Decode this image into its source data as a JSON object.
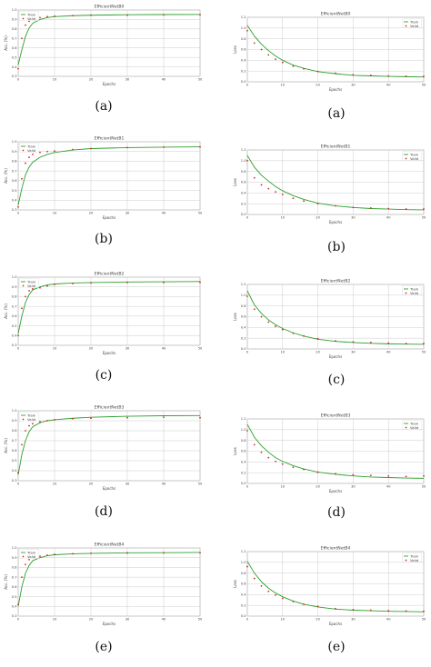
{
  "captions": [
    "(a)",
    "(b)",
    "(c)",
    "(d)",
    "(e)",
    "(a)",
    "(b)",
    "(c)",
    "(d)",
    "(e)"
  ],
  "colors": {
    "train": "#2ca02c",
    "valid": "#d62728",
    "grid": "#cccccc",
    "frame": "#999999"
  },
  "chart_data": [
    {
      "id": "acc-a",
      "type": "line",
      "title": "EfficientNetB0",
      "xlabel": "Epochs",
      "ylabel": "Acc. (%)",
      "grid": true,
      "legend": "top-left",
      "xlim": [
        0,
        50
      ],
      "ylim": [
        0.3,
        1.0
      ],
      "x": [
        0,
        1,
        2,
        3,
        4,
        6,
        8,
        10,
        15,
        20,
        30,
        40,
        50
      ],
      "series": [
        {
          "name": "Train",
          "style": "line",
          "values": [
            0.42,
            0.58,
            0.72,
            0.81,
            0.86,
            0.9,
            0.92,
            0.93,
            0.94,
            0.945,
            0.95,
            0.952,
            0.953
          ]
        },
        {
          "name": "Valid",
          "style": "dots",
          "values": [
            0.38,
            0.7,
            0.84,
            0.88,
            0.9,
            0.92,
            0.93,
            0.935,
            0.94,
            0.945,
            0.945,
            0.948,
            0.95
          ]
        }
      ]
    },
    {
      "id": "acc-b",
      "type": "line",
      "title": "EfficientNetB1",
      "xlabel": "Epochs",
      "ylabel": "Acc. (%)",
      "grid": true,
      "legend": "top-left",
      "xlim": [
        0,
        50
      ],
      "ylim": [
        0.3,
        1.0
      ],
      "x": [
        0,
        1,
        2,
        3,
        4,
        6,
        8,
        10,
        15,
        20,
        30,
        40,
        50
      ],
      "series": [
        {
          "name": "Train",
          "style": "line",
          "values": [
            0.35,
            0.52,
            0.66,
            0.74,
            0.79,
            0.84,
            0.87,
            0.89,
            0.915,
            0.93,
            0.94,
            0.945,
            0.948
          ]
        },
        {
          "name": "Valid",
          "style": "dots",
          "values": [
            0.33,
            0.62,
            0.78,
            0.84,
            0.87,
            0.89,
            0.9,
            0.905,
            0.92,
            0.93,
            0.94,
            0.945,
            0.947
          ]
        }
      ]
    },
    {
      "id": "acc-c",
      "type": "line",
      "title": "EfficientNetB2",
      "xlabel": "Epochs",
      "ylabel": "Acc. (%)",
      "grid": true,
      "legend": "top-left",
      "xlim": [
        0,
        50
      ],
      "ylim": [
        0.3,
        1.0
      ],
      "x": [
        0,
        1,
        2,
        3,
        4,
        6,
        8,
        10,
        15,
        20,
        30,
        40,
        50
      ],
      "series": [
        {
          "name": "Train",
          "style": "line",
          "values": [
            0.42,
            0.6,
            0.74,
            0.82,
            0.87,
            0.9,
            0.92,
            0.93,
            0.94,
            0.945,
            0.95,
            0.953,
            0.955
          ]
        },
        {
          "name": "Valid",
          "style": "dots",
          "values": [
            0.4,
            0.68,
            0.8,
            0.86,
            0.88,
            0.89,
            0.91,
            0.925,
            0.935,
            0.94,
            0.945,
            0.945,
            0.948
          ]
        }
      ]
    },
    {
      "id": "acc-d",
      "type": "line",
      "title": "EfficientNetB3",
      "xlabel": "Epochs",
      "ylabel": "Acc. (%)",
      "grid": true,
      "legend": "top-left",
      "xlim": [
        0,
        50
      ],
      "ylim": [
        0.3,
        1.0
      ],
      "x": [
        0,
        1,
        2,
        3,
        4,
        6,
        8,
        10,
        15,
        20,
        30,
        40,
        50
      ],
      "series": [
        {
          "name": "Train",
          "style": "line",
          "values": [
            0.36,
            0.56,
            0.7,
            0.79,
            0.84,
            0.88,
            0.9,
            0.91,
            0.925,
            0.935,
            0.945,
            0.95,
            0.952
          ]
        },
        {
          "name": "Valid",
          "style": "dots",
          "values": [
            0.38,
            0.66,
            0.8,
            0.85,
            0.87,
            0.89,
            0.9,
            0.91,
            0.92,
            0.925,
            0.93,
            0.935,
            0.93
          ]
        }
      ]
    },
    {
      "id": "acc-e",
      "type": "line",
      "title": "EfficientNetB4",
      "xlabel": "Epochs",
      "ylabel": "Acc. (%)",
      "grid": true,
      "legend": "top-left",
      "xlim": [
        0,
        50
      ],
      "ylim": [
        0.3,
        1.0
      ],
      "x": [
        0,
        1,
        2,
        3,
        4,
        6,
        8,
        10,
        15,
        20,
        30,
        40,
        50
      ],
      "series": [
        {
          "name": "Train",
          "style": "line",
          "values": [
            0.4,
            0.6,
            0.74,
            0.82,
            0.87,
            0.9,
            0.92,
            0.93,
            0.94,
            0.945,
            0.95,
            0.952,
            0.954
          ]
        },
        {
          "name": "Valid",
          "style": "dots",
          "values": [
            0.42,
            0.7,
            0.83,
            0.88,
            0.9,
            0.915,
            0.925,
            0.935,
            0.94,
            0.945,
            0.948,
            0.95,
            0.951
          ]
        }
      ]
    },
    {
      "id": "loss-a",
      "type": "line",
      "title": "EfficientNetB0",
      "xlabel": "Epochs",
      "ylabel": "Loss",
      "grid": true,
      "legend": "top-right",
      "xlim": [
        0,
        50
      ],
      "ylim": [
        0,
        1.2
      ],
      "x": [
        0,
        2,
        4,
        6,
        8,
        10,
        13,
        16,
        20,
        25,
        30,
        35,
        40,
        45,
        50
      ],
      "series": [
        {
          "name": "Train",
          "style": "line",
          "values": [
            1.05,
            0.85,
            0.7,
            0.58,
            0.48,
            0.4,
            0.31,
            0.25,
            0.19,
            0.15,
            0.12,
            0.11,
            0.1,
            0.095,
            0.09
          ]
        },
        {
          "name": "Valid",
          "style": "dots",
          "values": [
            0.95,
            0.72,
            0.6,
            0.5,
            0.42,
            0.36,
            0.29,
            0.24,
            0.19,
            0.16,
            0.13,
            0.12,
            0.11,
            0.1,
            0.1
          ]
        }
      ]
    },
    {
      "id": "loss-b",
      "type": "line",
      "title": "EfficientNetB1",
      "xlabel": "Epochs",
      "ylabel": "Loss",
      "grid": true,
      "legend": "top-right",
      "xlim": [
        0,
        50
      ],
      "ylim": [
        0,
        1.2
      ],
      "x": [
        0,
        2,
        4,
        6,
        8,
        10,
        13,
        16,
        20,
        25,
        30,
        35,
        40,
        45,
        50
      ],
      "series": [
        {
          "name": "Train",
          "style": "line",
          "values": [
            1.1,
            0.88,
            0.73,
            0.62,
            0.52,
            0.44,
            0.35,
            0.28,
            0.21,
            0.16,
            0.13,
            0.11,
            0.1,
            0.09,
            0.085
          ]
        },
        {
          "name": "Valid",
          "style": "dots",
          "values": [
            1.0,
            0.68,
            0.55,
            0.48,
            0.42,
            0.37,
            0.3,
            0.25,
            0.2,
            0.16,
            0.13,
            0.12,
            0.11,
            0.1,
            0.1
          ]
        }
      ]
    },
    {
      "id": "loss-c",
      "type": "line",
      "title": "EfficientNetB2",
      "xlabel": "Epochs",
      "ylabel": "Loss",
      "grid": true,
      "legend": "top-right",
      "xlim": [
        0,
        50
      ],
      "ylim": [
        0,
        1.2
      ],
      "x": [
        0,
        2,
        4,
        6,
        8,
        10,
        13,
        16,
        20,
        25,
        30,
        35,
        40,
        45,
        50
      ],
      "series": [
        {
          "name": "Train",
          "style": "line",
          "values": [
            1.08,
            0.82,
            0.66,
            0.54,
            0.45,
            0.38,
            0.3,
            0.24,
            0.18,
            0.14,
            0.12,
            0.105,
            0.095,
            0.09,
            0.085
          ]
        },
        {
          "name": "Valid",
          "style": "dots",
          "values": [
            0.98,
            0.74,
            0.6,
            0.5,
            0.42,
            0.36,
            0.29,
            0.24,
            0.19,
            0.15,
            0.13,
            0.12,
            0.11,
            0.1,
            0.1
          ]
        }
      ]
    },
    {
      "id": "loss-d",
      "type": "line",
      "title": "EfficientNetB3",
      "xlabel": "Epochs",
      "ylabel": "Loss",
      "grid": true,
      "legend": "top-right",
      "xlim": [
        0,
        50
      ],
      "ylim": [
        0,
        1.2
      ],
      "x": [
        0,
        2,
        4,
        6,
        8,
        10,
        13,
        16,
        20,
        25,
        30,
        35,
        40,
        45,
        50
      ],
      "series": [
        {
          "name": "Train",
          "style": "line",
          "values": [
            1.1,
            0.86,
            0.7,
            0.58,
            0.48,
            0.41,
            0.33,
            0.27,
            0.21,
            0.17,
            0.14,
            0.12,
            0.11,
            0.1,
            0.095
          ]
        },
        {
          "name": "Valid",
          "style": "dots",
          "values": [
            0.98,
            0.72,
            0.58,
            0.48,
            0.41,
            0.36,
            0.3,
            0.26,
            0.21,
            0.18,
            0.16,
            0.15,
            0.14,
            0.13,
            0.14
          ]
        }
      ]
    },
    {
      "id": "loss-e",
      "type": "line",
      "title": "EfficientNetB4",
      "xlabel": "Epochs",
      "ylabel": "Loss",
      "grid": true,
      "legend": "top-right",
      "xlim": [
        0,
        50
      ],
      "ylim": [
        0,
        1.2
      ],
      "x": [
        0,
        2,
        4,
        6,
        8,
        10,
        13,
        16,
        20,
        25,
        30,
        35,
        40,
        45,
        50
      ],
      "series": [
        {
          "name": "Train",
          "style": "line",
          "values": [
            1.02,
            0.8,
            0.64,
            0.52,
            0.43,
            0.36,
            0.28,
            0.22,
            0.17,
            0.13,
            0.11,
            0.1,
            0.09,
            0.085,
            0.08
          ]
        },
        {
          "name": "Valid",
          "style": "dots",
          "values": [
            0.92,
            0.7,
            0.56,
            0.46,
            0.39,
            0.33,
            0.27,
            0.22,
            0.18,
            0.14,
            0.12,
            0.11,
            0.1,
            0.095,
            0.09
          ]
        }
      ]
    }
  ]
}
